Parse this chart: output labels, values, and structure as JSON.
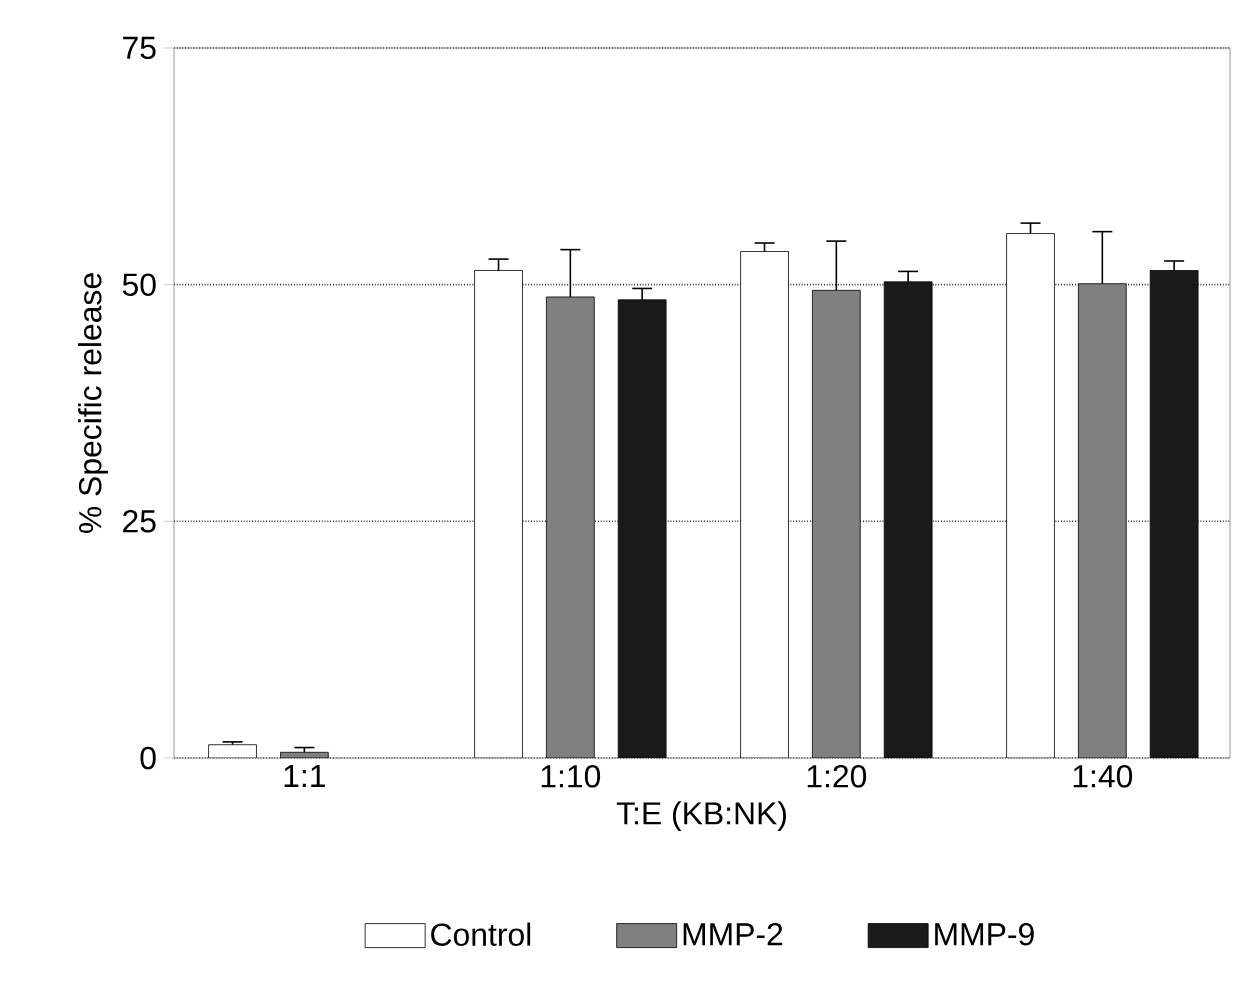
{
  "chart_data": {
    "type": "bar",
    "xlabel": "T:E (KB:NK)",
    "ylabel": "% Specific release",
    "categories": [
      "1:1",
      "1:10",
      "1:20",
      "1:40"
    ],
    "series": [
      {
        "name": "Control",
        "color": "#ffffff",
        "values": [
          1.4,
          51.5,
          53.5,
          55.4
        ],
        "errors": [
          [
            1.4,
            1.7
          ],
          [
            51.5,
            52.7
          ],
          [
            53.5,
            54.4
          ],
          [
            55.4,
            56.5
          ]
        ]
      },
      {
        "name": "MMP-2",
        "color": "#808080",
        "values": [
          0.6,
          48.7,
          49.4,
          50.1
        ],
        "errors": [
          [
            0.6,
            1.1
          ],
          [
            48.7,
            53.7
          ],
          [
            49.4,
            54.6
          ],
          [
            50.1,
            55.6
          ]
        ]
      },
      {
        "name": "MMP-9",
        "color": "#1a1a1a",
        "values": [
          null,
          48.4,
          50.3,
          51.5
        ],
        "errors": [
          null,
          [
            48.4,
            49.6
          ],
          [
            50.3,
            51.4
          ],
          [
            51.5,
            52.5
          ]
        ]
      }
    ],
    "ylim": [
      0,
      75
    ],
    "yticks": [
      0,
      25,
      50,
      75
    ],
    "grid": "y",
    "legend": "bottom"
  }
}
